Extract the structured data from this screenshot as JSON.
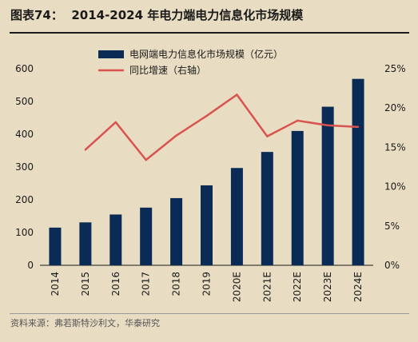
{
  "title": {
    "label": "图表74：",
    "text": "2014-2024 年电力端电力信息化市场规模"
  },
  "source": "资料来源：弗若斯特沙利文，华泰研究",
  "colors": {
    "bar": "#0a2b55",
    "line": "#d9534f",
    "background": "#e8dcc2"
  },
  "chart_data": {
    "type": "bar",
    "categories": [
      "2014",
      "2015",
      "2016",
      "2017",
      "2018",
      "2019",
      "2020E",
      "2021E",
      "2022E",
      "2023E",
      "2024E"
    ],
    "series": [
      {
        "name": "电网端电力信息化市场规模（亿元）",
        "type": "bar",
        "axis": "left",
        "values": [
          115,
          131,
          155,
          176,
          205,
          244,
          297,
          346,
          410,
          484,
          569
        ]
      },
      {
        "name": "同比增速（右轴）",
        "type": "line",
        "axis": "right",
        "values": [
          null,
          14.7,
          18.2,
          13.4,
          16.5,
          19.0,
          21.7,
          16.4,
          18.4,
          17.8,
          17.6
        ]
      }
    ],
    "ylim_left": [
      0,
      600
    ],
    "yticks_left": [
      "0",
      "100",
      "200",
      "300",
      "400",
      "500",
      "600"
    ],
    "ylim_right": [
      0,
      25
    ],
    "yticks_right": [
      "0%",
      "5%",
      "10%",
      "15%",
      "20%",
      "25%"
    ],
    "legend_position": "top-left",
    "grid": false
  }
}
